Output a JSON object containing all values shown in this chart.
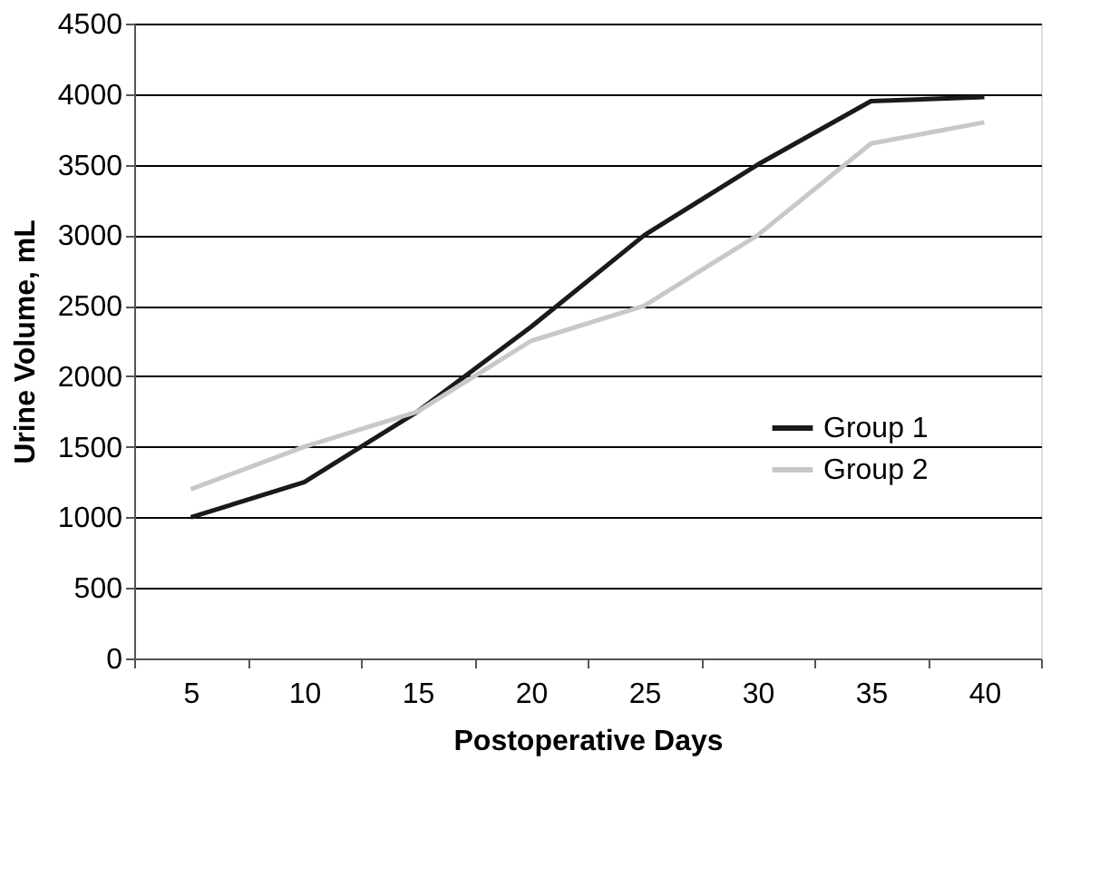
{
  "chart_data": {
    "type": "line",
    "xlabel": "Postoperative Days",
    "ylabel": "Urine Volume, mL",
    "categories": [
      "5",
      "10",
      "15",
      "20",
      "25",
      "30",
      "35",
      "40"
    ],
    "series": [
      {
        "name": "Group 1",
        "color": "#1a1a1a",
        "values": [
          1000,
          1250,
          1750,
          2350,
          3000,
          3500,
          3950,
          3980
        ]
      },
      {
        "name": "Group 2",
        "color": "#c8c8c8",
        "values": [
          1200,
          1500,
          1750,
          2250,
          2500,
          3000,
          3650,
          3800
        ]
      }
    ],
    "ylim": [
      0,
      4500
    ],
    "yticks": [
      0,
      500,
      1000,
      1500,
      2000,
      2500,
      3000,
      3500,
      4000,
      4500
    ],
    "grid": "y",
    "legend": "right",
    "marker": "none",
    "line_style": "solid"
  }
}
